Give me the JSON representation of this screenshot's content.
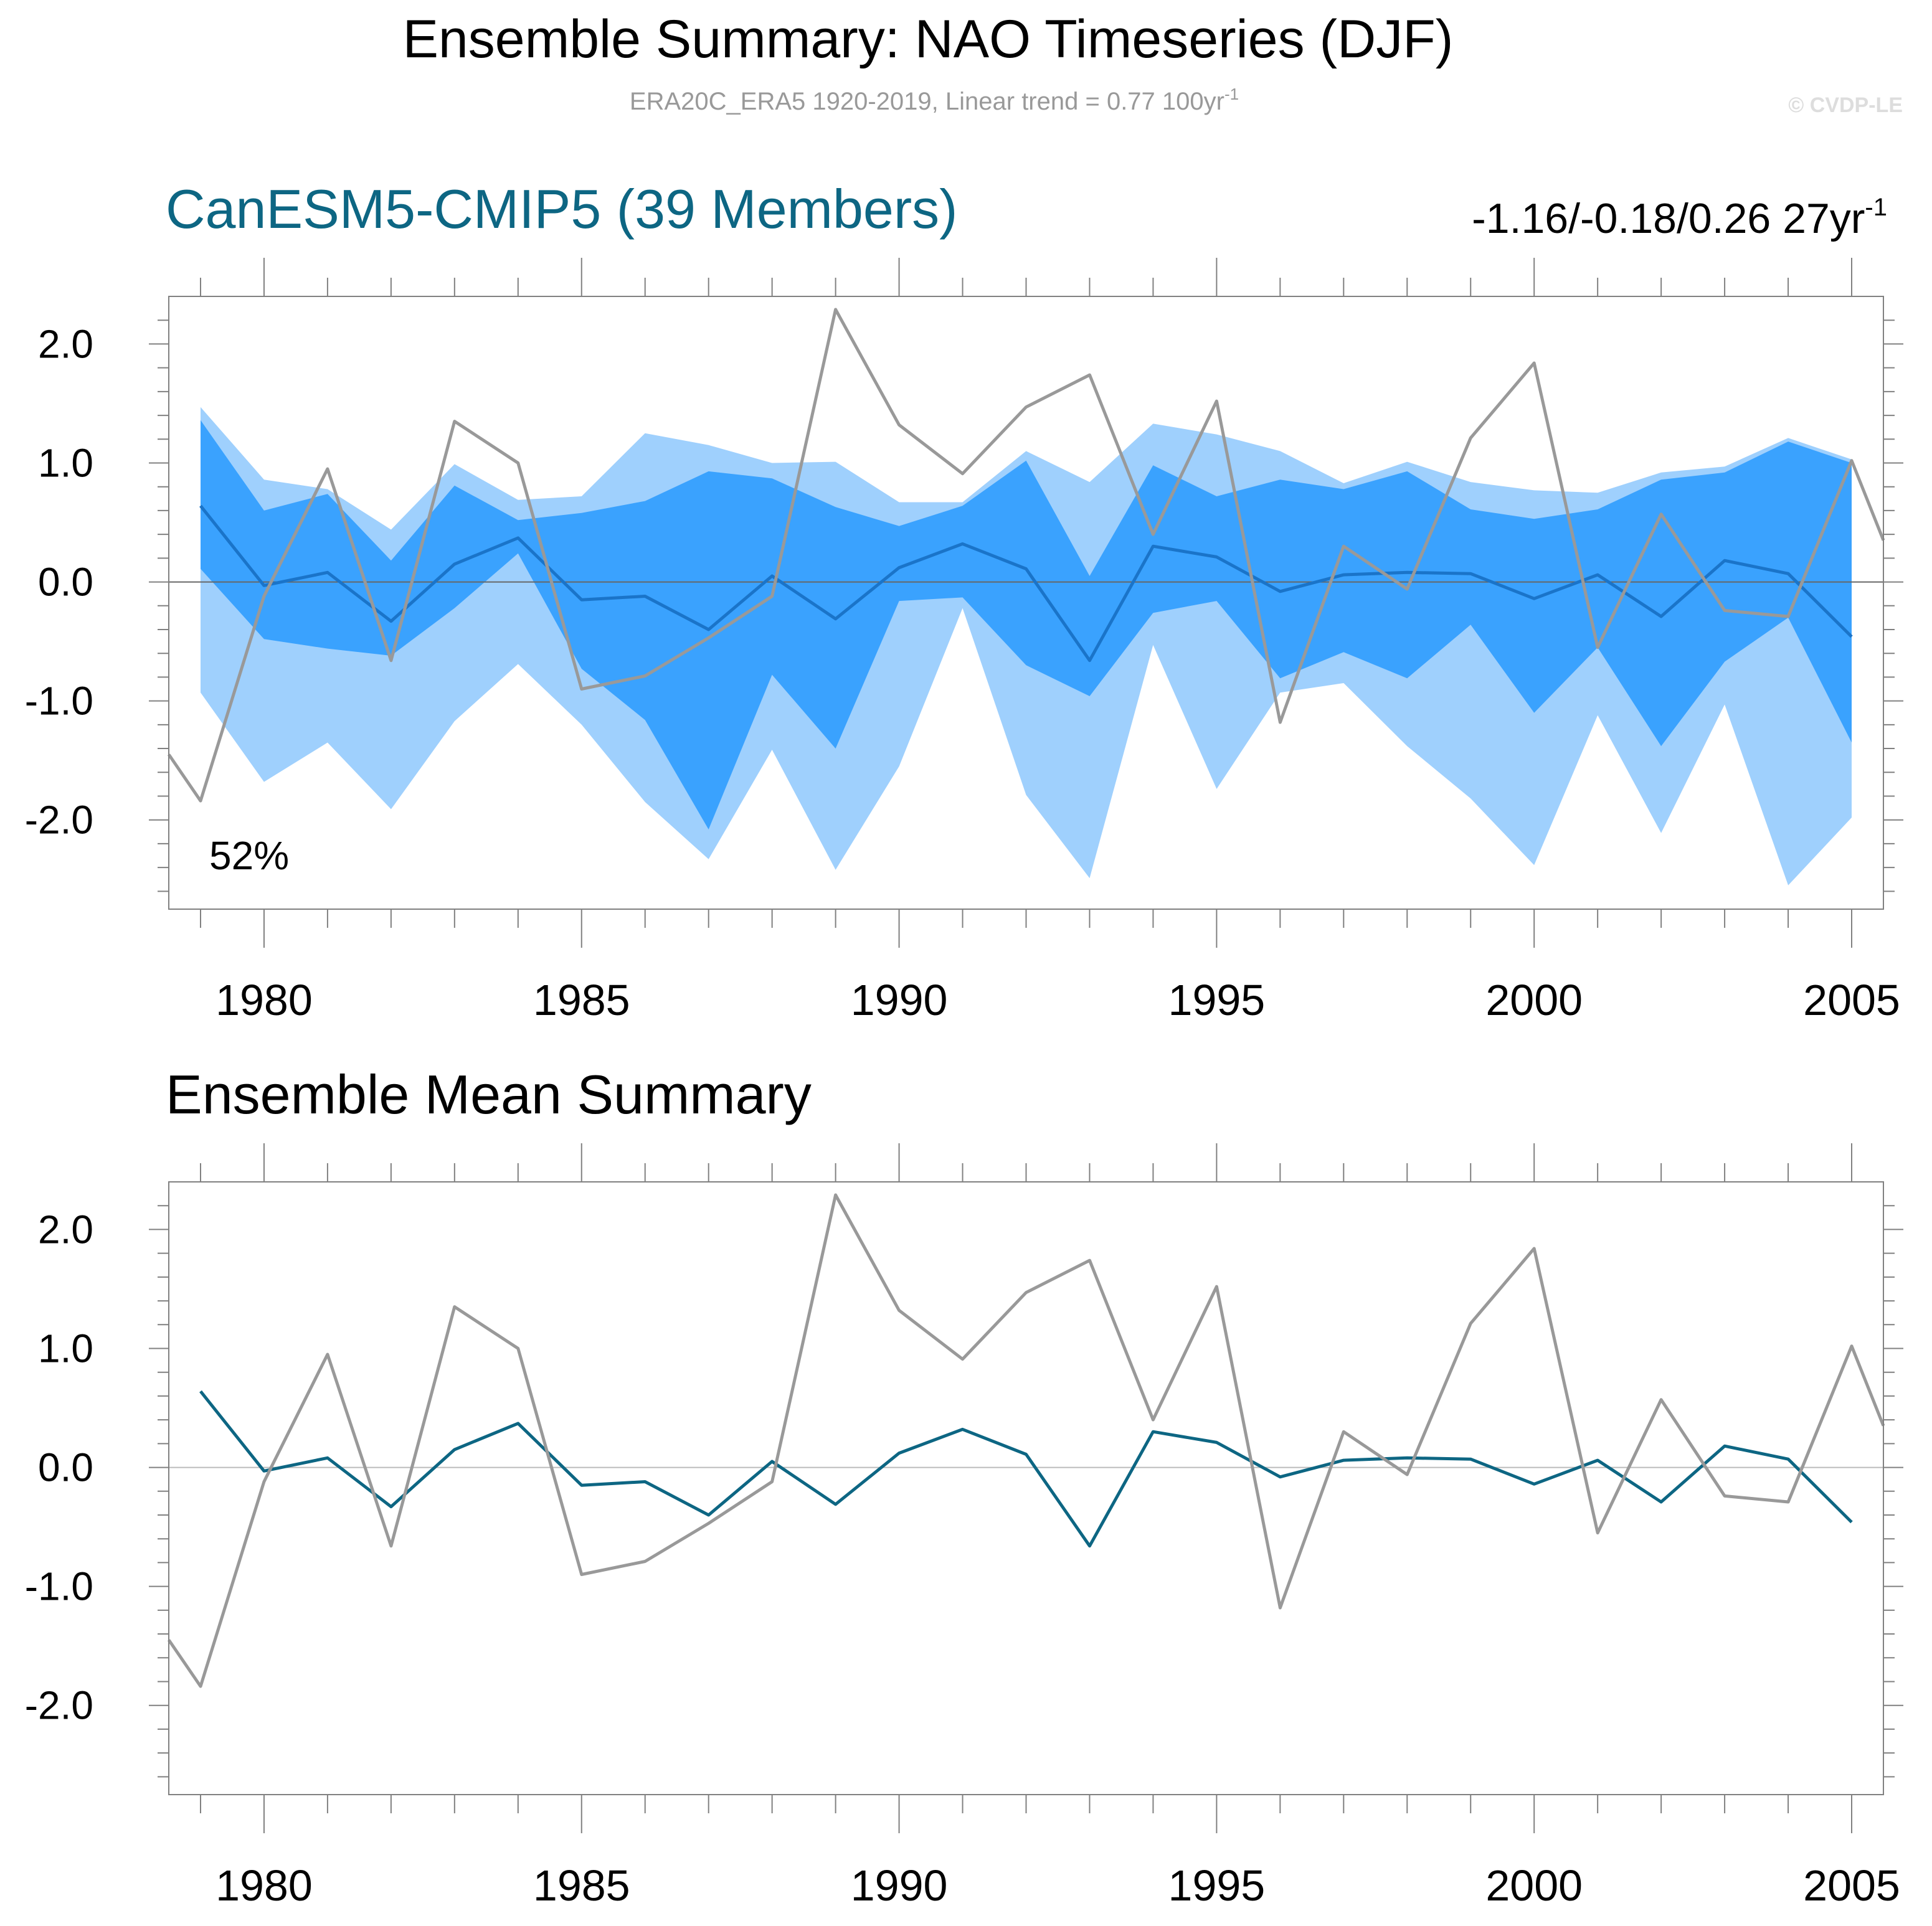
{
  "header": {
    "title": "Ensemble Summary: NAO Timeseries (DJF)",
    "subtitle_main": "ERA20C_ERA5 1920-2019, Linear trend = 0.77 100yr",
    "subtitle_sup": "-1",
    "watermark": "© CVDP-LE"
  },
  "colors": {
    "band_outer": "#9fd0fd",
    "band_inner": "#3aa2fe",
    "ens_mean": "#1a74c9",
    "ens_mean_bottom": "#0d6683",
    "obs": "#999999",
    "title_accent": "#0d6683",
    "axis": "#808080"
  },
  "chart_data": [
    {
      "type": "area",
      "title": "CanESM5-CMIP5 (39 Members)",
      "right_label": "-1.16/-0.18/0.26 27yr",
      "right_label_sup": "-1",
      "annotation": "52%",
      "xlim": [
        1978.5,
        2005.5
      ],
      "ylim": [
        -2.75,
        2.4
      ],
      "x_ticks": [
        1980,
        1985,
        1990,
        1995,
        2000,
        2005
      ],
      "x_tick_labels": [
        "1980",
        "1985",
        "1990",
        "1995",
        "2000",
        "2005"
      ],
      "y_ticks": [
        -2.0,
        -1.0,
        0.0,
        1.0,
        2.0
      ],
      "y_tick_labels": [
        "-2.0",
        "-1.0",
        "0.0",
        "1.0",
        "2.0"
      ],
      "x": [
        1979,
        1980,
        1981,
        1982,
        1983,
        1984,
        1985,
        1986,
        1987,
        1988,
        1989,
        1990,
        1991,
        1992,
        1993,
        1994,
        1995,
        1996,
        1997,
        1998,
        1999,
        2000,
        2001,
        2002,
        2003,
        2004,
        2005
      ],
      "band_outer": {
        "upper": [
          1.47,
          0.86,
          0.78,
          0.44,
          0.99,
          0.69,
          0.72,
          1.25,
          1.15,
          1.0,
          1.01,
          0.67,
          0.67,
          1.1,
          0.84,
          1.33,
          1.24,
          1.1,
          0.83,
          1.01,
          0.84,
          0.77,
          0.75,
          0.92,
          0.97,
          1.21,
          1.03
        ],
        "lower": [
          -0.93,
          -1.68,
          -1.35,
          -1.91,
          -1.17,
          -0.69,
          -1.2,
          -1.85,
          -2.33,
          -1.41,
          -2.42,
          -1.55,
          -0.22,
          -1.79,
          -2.49,
          -0.53,
          -1.74,
          -0.93,
          -0.85,
          -1.38,
          -1.82,
          -2.38,
          -1.12,
          -2.11,
          -1.03,
          -2.55,
          -1.98
        ]
      },
      "band_inner": {
        "upper": [
          1.36,
          0.6,
          0.74,
          0.18,
          0.81,
          0.52,
          0.58,
          0.68,
          0.93,
          0.87,
          0.63,
          0.47,
          0.64,
          1.02,
          0.05,
          0.98,
          0.72,
          0.86,
          0.78,
          0.93,
          0.61,
          0.53,
          0.61,
          0.86,
          0.92,
          1.18,
          1.0
        ],
        "lower": [
          0.11,
          -0.48,
          -0.56,
          -0.62,
          -0.22,
          0.24,
          -0.73,
          -1.16,
          -2.08,
          -0.78,
          -1.4,
          -0.16,
          -0.13,
          -0.7,
          -0.96,
          -0.26,
          -0.16,
          -0.81,
          -0.59,
          -0.81,
          -0.36,
          -1.1,
          -0.55,
          -1.38,
          -0.67,
          -0.3,
          -1.35
        ]
      },
      "series": [
        {
          "name": "ensemble mean",
          "x": [
            1979,
            1980,
            1981,
            1982,
            1983,
            1984,
            1985,
            1986,
            1987,
            1988,
            1989,
            1990,
            1991,
            1992,
            1993,
            1994,
            1995,
            1996,
            1997,
            1998,
            1999,
            2000,
            2001,
            2002,
            2003,
            2004,
            2005
          ],
          "values": [
            0.64,
            -0.03,
            0.08,
            -0.33,
            0.15,
            0.37,
            -0.15,
            -0.12,
            -0.4,
            0.05,
            -0.31,
            0.12,
            0.32,
            0.11,
            -0.66,
            0.3,
            0.21,
            -0.08,
            0.06,
            0.08,
            0.07,
            -0.14,
            0.06,
            -0.29,
            0.18,
            0.07,
            -0.46
          ]
        },
        {
          "name": "observations",
          "x": [
            1978.5,
            1979,
            1980,
            1981,
            1982,
            1983,
            1984,
            1985,
            1986,
            1987,
            1988,
            1989,
            1990,
            1991,
            1992,
            1993,
            1994,
            1995,
            1996,
            1997,
            1998,
            1999,
            2000,
            2001,
            2002,
            2003,
            2004,
            2005,
            2005.5
          ],
          "values": [
            -1.45,
            -1.84,
            -0.12,
            0.95,
            -0.66,
            1.35,
            1.0,
            -0.9,
            -0.79,
            -0.47,
            -0.12,
            2.29,
            1.32,
            0.91,
            1.47,
            1.74,
            0.4,
            1.52,
            -1.18,
            0.3,
            -0.06,
            1.21,
            1.84,
            -0.55,
            0.57,
            -0.24,
            -0.29,
            1.02,
            0.35
          ]
        }
      ]
    },
    {
      "type": "line",
      "title": "Ensemble Mean Summary",
      "xlim": [
        1978.5,
        2005.5
      ],
      "ylim": [
        -2.75,
        2.4
      ],
      "x_ticks": [
        1980,
        1985,
        1990,
        1995,
        2000,
        2005
      ],
      "x_tick_labels": [
        "1980",
        "1985",
        "1990",
        "1995",
        "2000",
        "2005"
      ],
      "y_ticks": [
        -2.0,
        -1.0,
        0.0,
        1.0,
        2.0
      ],
      "y_tick_labels": [
        "-2.0",
        "-1.0",
        "0.0",
        "1.0",
        "2.0"
      ],
      "series": [
        {
          "name": "ensemble mean",
          "x": [
            1979,
            1980,
            1981,
            1982,
            1983,
            1984,
            1985,
            1986,
            1987,
            1988,
            1989,
            1990,
            1991,
            1992,
            1993,
            1994,
            1995,
            1996,
            1997,
            1998,
            1999,
            2000,
            2001,
            2002,
            2003,
            2004,
            2005
          ],
          "values": [
            0.64,
            -0.03,
            0.08,
            -0.33,
            0.15,
            0.37,
            -0.15,
            -0.12,
            -0.4,
            0.05,
            -0.31,
            0.12,
            0.32,
            0.11,
            -0.66,
            0.3,
            0.21,
            -0.08,
            0.06,
            0.08,
            0.07,
            -0.14,
            0.06,
            -0.29,
            0.18,
            0.07,
            -0.46
          ]
        },
        {
          "name": "observations",
          "x": [
            1978.5,
            1979,
            1980,
            1981,
            1982,
            1983,
            1984,
            1985,
            1986,
            1987,
            1988,
            1989,
            1990,
            1991,
            1992,
            1993,
            1994,
            1995,
            1996,
            1997,
            1998,
            1999,
            2000,
            2001,
            2002,
            2003,
            2004,
            2005,
            2005.5
          ],
          "values": [
            -1.45,
            -1.84,
            -0.12,
            0.95,
            -0.66,
            1.35,
            1.0,
            -0.9,
            -0.79,
            -0.47,
            -0.12,
            2.29,
            1.32,
            0.91,
            1.47,
            1.74,
            0.4,
            1.52,
            -1.18,
            0.3,
            -0.06,
            1.21,
            1.84,
            -0.55,
            0.57,
            -0.24,
            -0.29,
            1.02,
            0.35
          ]
        }
      ]
    }
  ]
}
